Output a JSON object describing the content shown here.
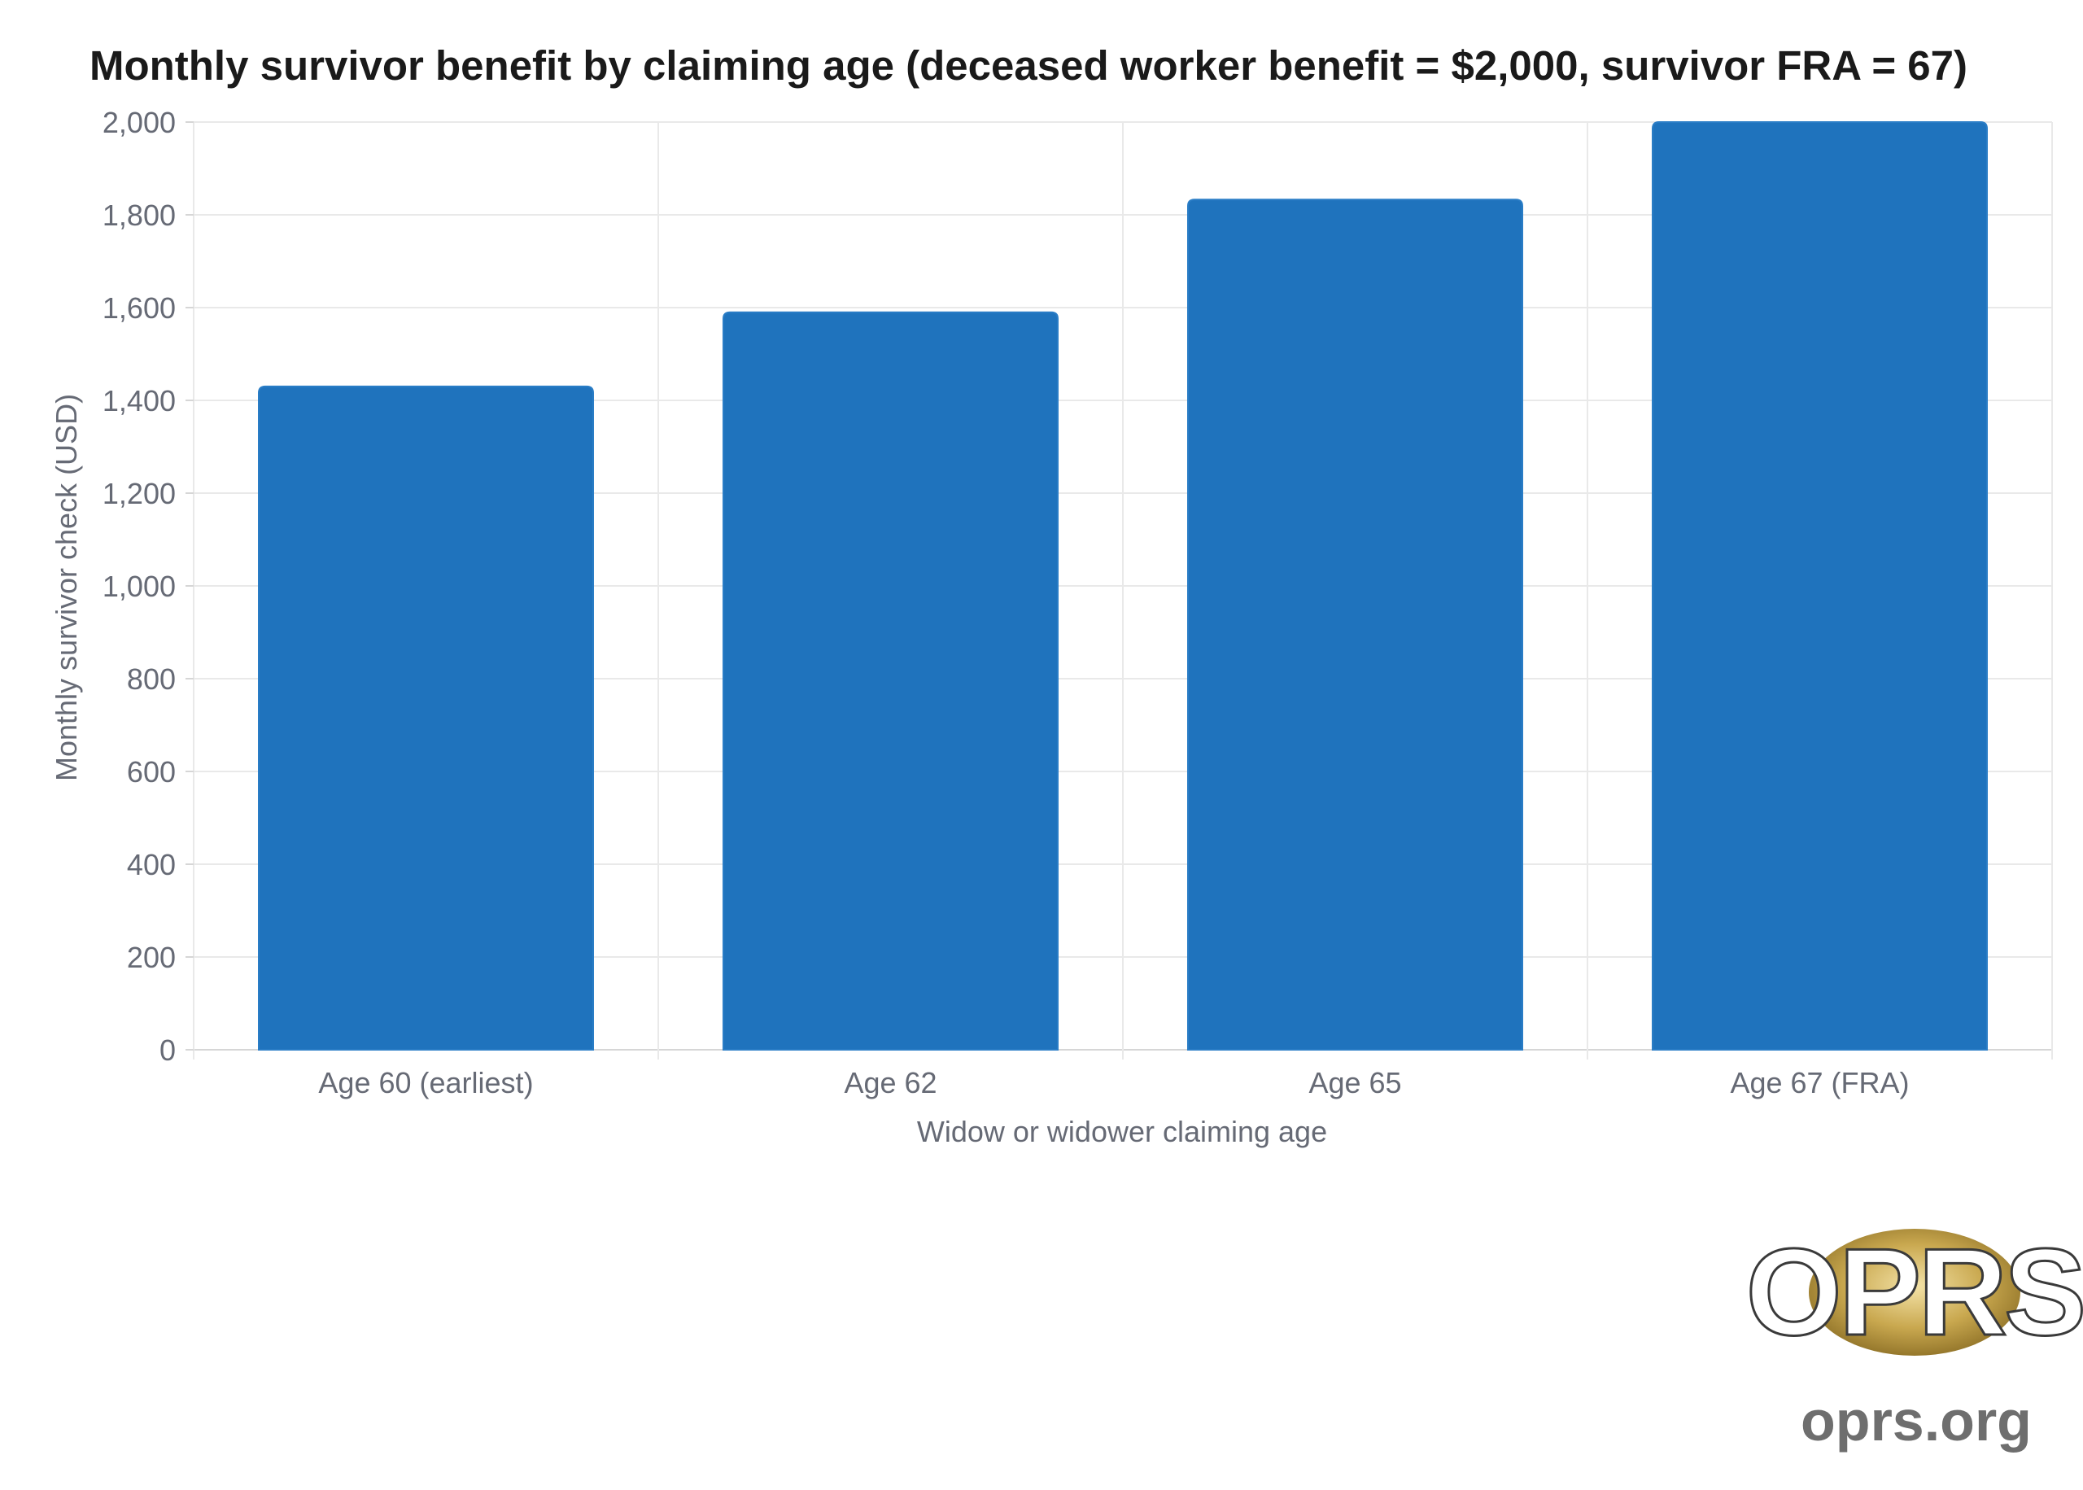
{
  "chart_data": {
    "type": "bar",
    "title": "Monthly survivor benefit by claiming age (deceased worker benefit = $2,000, survivor FRA = 67)",
    "xlabel": "Widow or widower claiming age",
    "ylabel": "Monthly survivor check (USD)",
    "categories": [
      "Age 60 (earliest)",
      "Age 62",
      "Age 65",
      "Age 67 (FRA)"
    ],
    "values": [
      1430,
      1590,
      1833,
      2000
    ],
    "ylim": [
      0,
      2000
    ],
    "yticks": [
      "0",
      "200",
      "400",
      "600",
      "800",
      "1,000",
      "1,200",
      "1,400",
      "1,600",
      "1,800",
      "2,000"
    ],
    "grid": true,
    "bar_color": "#1f73bd"
  },
  "logo": {
    "text": "OPRS",
    "url": "oprs.org"
  }
}
